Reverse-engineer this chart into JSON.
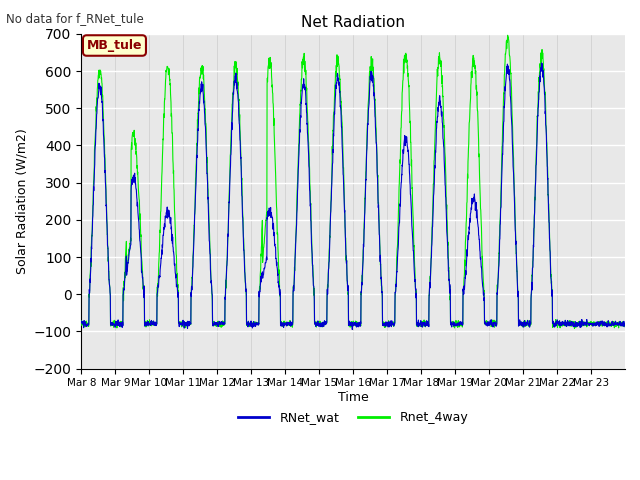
{
  "title": "Net Radiation",
  "suptitle": "No data for f_RNet_tule",
  "ylabel": "Solar Radiation (W/m2)",
  "xlabel": "Time",
  "ylim": [
    -200,
    700
  ],
  "yticks": [
    -200,
    -100,
    0,
    100,
    200,
    300,
    400,
    500,
    600,
    700
  ],
  "fig_bg_color": "#ffffff",
  "plot_bg_color": "#e8e8e8",
  "grid_color": "#ffffff",
  "line1_color": "#0000cc",
  "line2_color": "#00ee00",
  "legend_label1": "RNet_wat",
  "legend_label2": "Rnet_4way",
  "mb_tule_label": "MB_tule",
  "mb_tule_bg": "#ffffcc",
  "mb_tule_border": "#8b0000",
  "n_days": 16,
  "pts_per_day": 144,
  "night_val": -80,
  "blue_peaks": [
    560,
    310,
    220,
    560,
    580,
    225,
    570,
    580,
    590,
    420,
    520,
    255,
    610,
    615,
    0,
    0
  ],
  "green_peaks": [
    607,
    430,
    615,
    610,
    617,
    630,
    630,
    628,
    623,
    650,
    632,
    630,
    695,
    648,
    0,
    0
  ],
  "tick_labels": [
    "Mar 8",
    "Mar 9",
    "Mar 10",
    "Mar 11",
    "Mar 12",
    "Mar 13",
    "Mar 14",
    "Mar 15",
    "Mar 16",
    "Mar 17",
    "Mar 18",
    "Mar 19",
    "Mar 20",
    "Mar 21",
    "Mar 22",
    "Mar 23"
  ]
}
